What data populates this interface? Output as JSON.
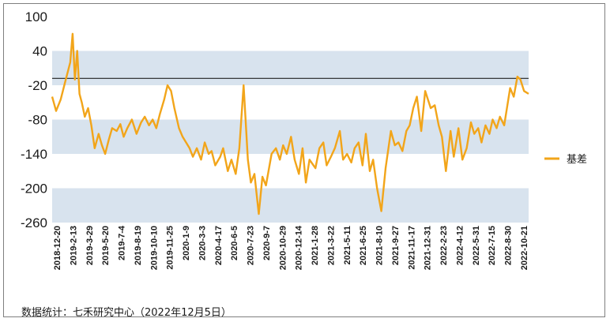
{
  "chart_data": {
    "type": "line",
    "legend": {
      "label": "基差",
      "placement": "right"
    },
    "series": [
      {
        "name": "基差",
        "color": "#f2a51a"
      }
    ],
    "ylim": [
      -260,
      100
    ],
    "yticks": [
      100,
      40,
      -20,
      -80,
      -140,
      -200,
      -260
    ],
    "bands": [
      [
        -20,
        40
      ],
      [
        -140,
        -80
      ],
      [
        -260,
        -200
      ]
    ],
    "band_color": "#d8e3ee",
    "reference_line": -8,
    "x_tick_labels": [
      "2018-12-20",
      "2019-2-13",
      "2019-3-29",
      "2019-5-20",
      "2019-7-4",
      "2019-8-19",
      "2019-10-10",
      "2019-11-25",
      "2020-1-9",
      "2020-3-3",
      "2020-4-17",
      "2020-6-5",
      "2020-7-23",
      "2020-9-7",
      "2020-10-29",
      "2020-12-14",
      "2021-1-28",
      "2021-3-22",
      "2021-5-11",
      "2021-6-25",
      "2021-8-10",
      "2021-9-27",
      "2021-11-17",
      "2021-12-31",
      "2022-2-23",
      "2022-4-12",
      "2022-5-31",
      "2022-7-15",
      "2022-8-30",
      "2022-10-21"
    ],
    "x": [
      "2018-12-20",
      "2019-1-1",
      "2019-1-15",
      "2019-1-28",
      "2019-2-13",
      "2019-2-20",
      "2019-2-27",
      "2019-3-6",
      "2019-3-13",
      "2019-3-20",
      "2019-3-29",
      "2019-4-8",
      "2019-4-18",
      "2019-4-28",
      "2019-5-10",
      "2019-5-20",
      "2019-5-30",
      "2019-6-10",
      "2019-6-20",
      "2019-7-4",
      "2019-7-15",
      "2019-7-25",
      "2019-8-5",
      "2019-8-19",
      "2019-9-2",
      "2019-9-16",
      "2019-9-27",
      "2019-10-10",
      "2019-10-21",
      "2019-11-1",
      "2019-11-12",
      "2019-11-25",
      "2019-12-5",
      "2019-12-16",
      "2019-12-26",
      "2020-1-9",
      "2020-1-20",
      "2020-2-10",
      "2020-2-20",
      "2020-3-3",
      "2020-3-16",
      "2020-3-27",
      "2020-4-8",
      "2020-4-17",
      "2020-4-28",
      "2020-5-13",
      "2020-5-22",
      "2020-6-5",
      "2020-6-16",
      "2020-6-29",
      "2020-7-10",
      "2020-7-23",
      "2020-8-5",
      "2020-8-14",
      "2020-8-25",
      "2020-9-7",
      "2020-9-18",
      "2020-9-29",
      "2020-10-16",
      "2020-10-29",
      "2020-11-10",
      "2020-11-20",
      "2020-12-1",
      "2020-12-14",
      "2020-12-25",
      "2021-1-7",
      "2021-1-18",
      "2021-1-28",
      "2021-2-8",
      "2021-2-26",
      "2021-3-10",
      "2021-3-22",
      "2021-4-1",
      "2021-4-14",
      "2021-4-26",
      "2021-5-11",
      "2021-5-21",
      "2021-6-2",
      "2021-6-15",
      "2021-6-25",
      "2021-7-7",
      "2021-7-19",
      "2021-7-29",
      "2021-8-10",
      "2021-8-20",
      "2021-9-1",
      "2021-9-14",
      "2021-9-27",
      "2021-10-13",
      "2021-10-25",
      "2021-11-5",
      "2021-11-17",
      "2021-11-29",
      "2021-12-9",
      "2021-12-20",
      "2021-12-31",
      "2022-1-13",
      "2022-1-25",
      "2022-2-11",
      "2022-2-23",
      "2022-3-7",
      "2022-3-17",
      "2022-3-29",
      "2022-4-12",
      "2022-4-22",
      "2022-5-6",
      "2022-5-18",
      "2022-5-31",
      "2022-6-13",
      "2022-6-23",
      "2022-7-5",
      "2022-7-15",
      "2022-7-27",
      "2022-8-8",
      "2022-8-18",
      "2022-8-30",
      "2022-9-9",
      "2022-9-22",
      "2022-10-10",
      "2022-10-21",
      "2022-11-1",
      "2022-11-10",
      "2022-11-21",
      "2022-12-5"
    ],
    "values": [
      -40,
      -65,
      -45,
      -15,
      20,
      70,
      -10,
      40,
      -35,
      -50,
      -75,
      -60,
      -90,
      -130,
      -105,
      -125,
      -140,
      -115,
      -95,
      -100,
      -88,
      -110,
      -95,
      -80,
      -105,
      -85,
      -75,
      -90,
      -80,
      -95,
      -70,
      -45,
      -20,
      -30,
      -60,
      -95,
      -110,
      -130,
      -145,
      -130,
      -150,
      -120,
      -140,
      -135,
      -160,
      -145,
      -130,
      -170,
      -150,
      -175,
      -130,
      -20,
      -150,
      -190,
      -175,
      -245,
      -180,
      -195,
      -140,
      -130,
      -150,
      -125,
      -140,
      -110,
      -150,
      -175,
      -130,
      -190,
      -150,
      -165,
      -130,
      -120,
      -160,
      -145,
      -130,
      -100,
      -150,
      -140,
      -155,
      -130,
      -120,
      -160,
      -105,
      -170,
      -150,
      -200,
      -240,
      -165,
      -100,
      -125,
      -120,
      -135,
      -100,
      -90,
      -60,
      -40,
      -100,
      -30,
      -60,
      -55,
      -90,
      -110,
      -170,
      -100,
      -145,
      -95,
      -150,
      -130,
      -85,
      -105,
      -95,
      -120,
      -90,
      -105,
      -80,
      -95,
      -75,
      -90,
      -25,
      -40,
      -5,
      -10,
      -30,
      -35
    ]
  },
  "footer": {
    "source": "数据统计：七禾研究中心（2022年12月5日）"
  }
}
